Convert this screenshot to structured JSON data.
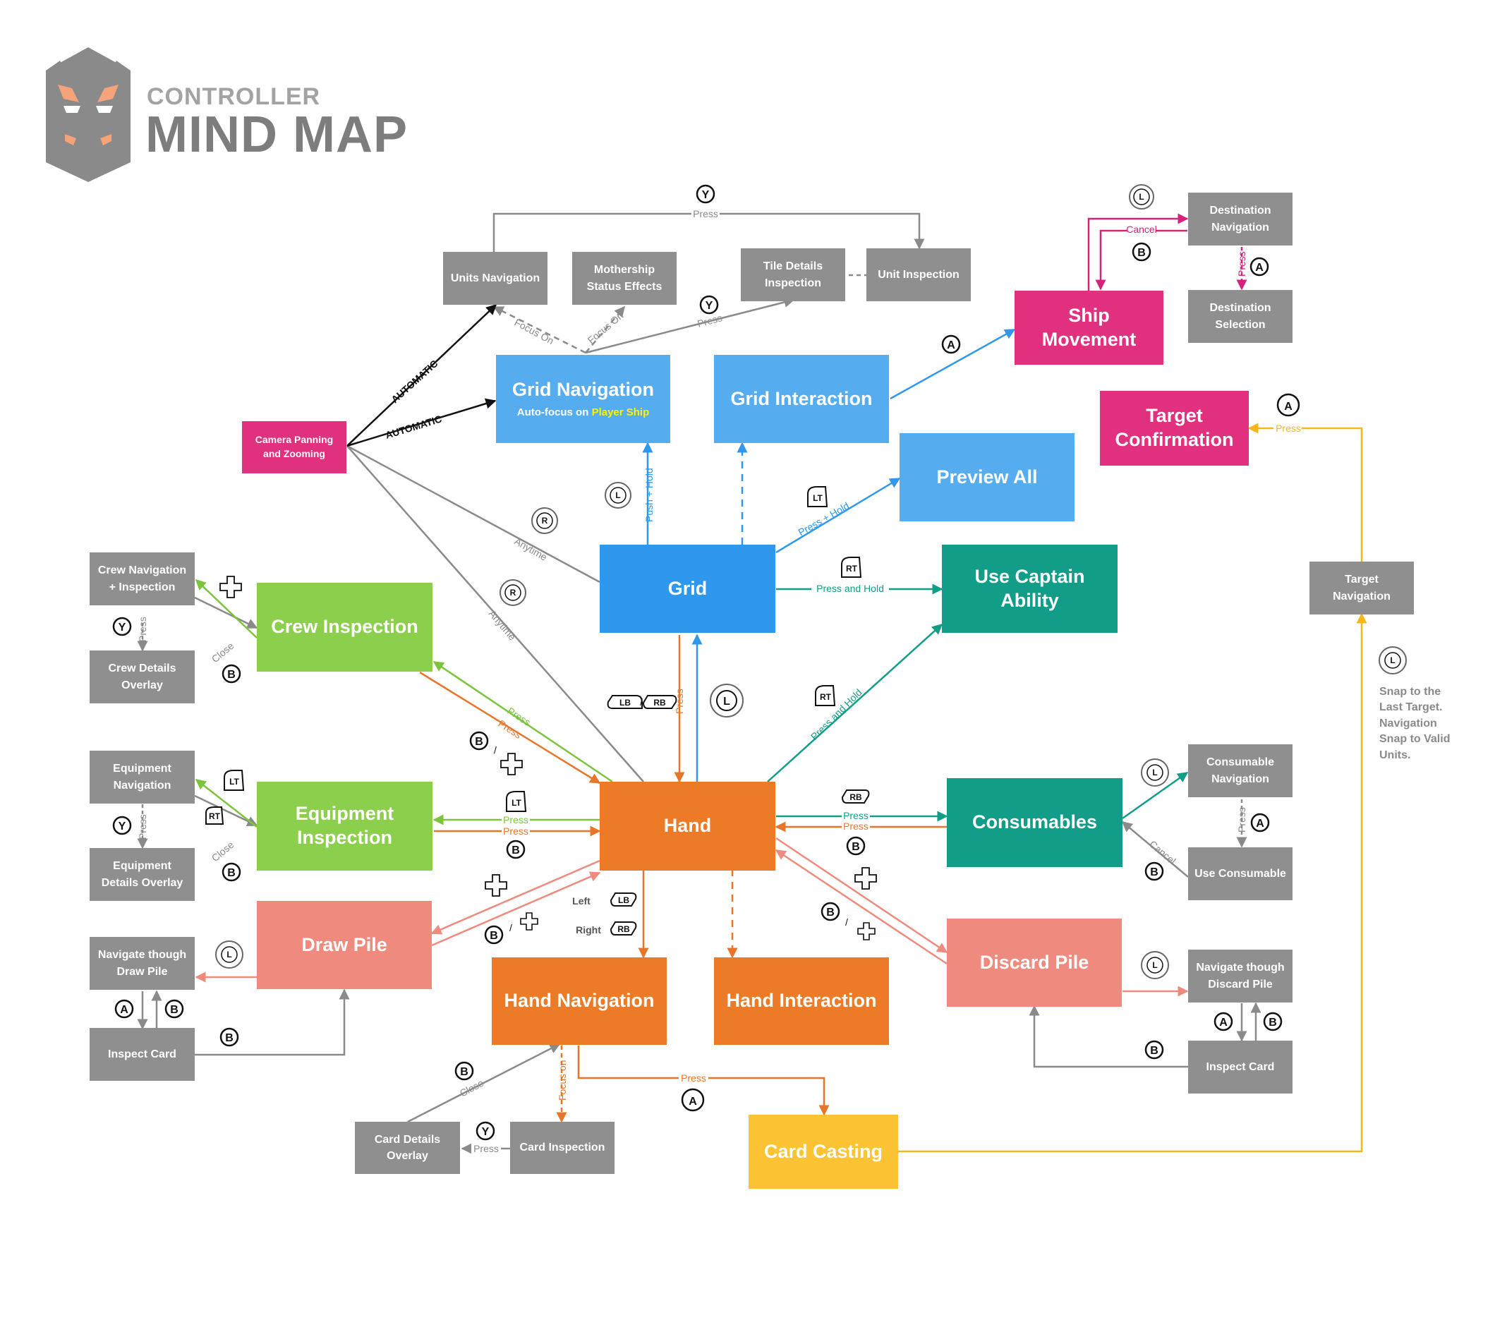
{
  "header": {
    "title_small": "CONTROLLER",
    "title_large": "MIND MAP"
  },
  "colors": {
    "gray": "#8f8f8f",
    "blue": "#55adf0",
    "grid": "#2f98ec",
    "magenta": "#e0307e",
    "green": "#8ccf4c",
    "teal": "#119d87",
    "orange": "#ec7a27",
    "salmon": "#ef8b7e",
    "yellow": "#fcc434"
  },
  "nodes": {
    "units_navigation": "Units Navigation",
    "mothership_status_effects": "Mothership Status Effects",
    "tile_details_inspection": "Tile Details Inspection",
    "unit_inspection": "Unit Inspection",
    "destination_navigation": "Destination Navigation",
    "destination_selection": "Destination Selection",
    "ship_movement": "Ship Movement",
    "target_confirmation": "Target Confirmation",
    "camera_panning_zooming": "Camera Panning and Zooming",
    "grid_navigation": "Grid Navigation",
    "grid_navigation_sub_prefix": "Auto-focus on",
    "grid_navigation_sub_highlight": "Player Ship",
    "grid_interaction": "Grid Interaction",
    "preview_all": "Preview All",
    "grid": "Grid",
    "use_captain_ability": "Use Captain Ability",
    "target_navigation": "Target Navigation",
    "crew_navigation_inspection": "Crew Navigation + Inspection",
    "crew_details_overlay": "Crew Details Overlay",
    "crew_inspection": "Crew Inspection",
    "equipment_navigation": "Equipment Navigation",
    "equipment_details_overlay": "Equipment Details Overlay",
    "equipment_inspection": "Equipment Inspection",
    "hand": "Hand",
    "consumables": "Consumables",
    "consumable_navigation": "Consumable Navigation",
    "use_consumable": "Use Consumable",
    "draw_pile": "Draw Pile",
    "navigate_draw_pile": "Navigate though Draw Pile",
    "inspect_card_left": "Inspect Card",
    "discard_pile": "Discard Pile",
    "navigate_discard_pile": "Navigate though Discard Pile",
    "inspect_card_right": "Inspect Card",
    "hand_navigation": "Hand Navigation",
    "hand_interaction": "Hand Interaction",
    "card_details_overlay": "Card Details Overlay",
    "card_inspection": "Card Inspection",
    "card_casting": "Card Casting"
  },
  "labels": {
    "press": "Press",
    "focus_on": "Focus On",
    "focus_on_small": "Focus On",
    "automatic": "AUTOMATIC",
    "cancel": "Cancel",
    "close": "Close",
    "anytime": "Anytime",
    "push_hold": "Push + Hold",
    "press_hold": "Press + Hold",
    "press_and_hold": "Press and Hold",
    "focus_on_lower": "Focus on",
    "left": "Left",
    "right": "Right",
    "slash": "/"
  },
  "buttons": {
    "a": "A",
    "b": "B",
    "y": "Y",
    "l": "L",
    "r": "R",
    "lt": "LT",
    "rt": "RT",
    "lb": "LB",
    "rb": "RB"
  },
  "note": {
    "line1": "Snap to the",
    "line2": "Last Target.",
    "line3": "Navigation",
    "line4": "Snap to Valid",
    "line5": "Units."
  }
}
